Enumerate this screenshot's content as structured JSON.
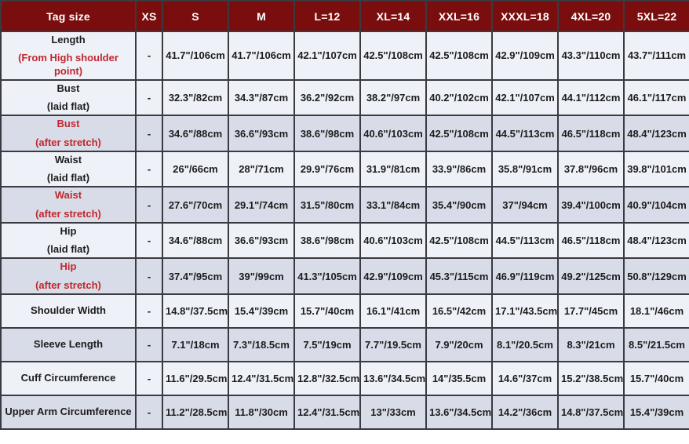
{
  "colors": {
    "header_bg": "#7a0d0d",
    "header_text": "#ffffff",
    "row_light_bg": "#eef1f8",
    "row_dark_bg": "#d8dce8",
    "text_black": "#1c1c1c",
    "text_red": "#c1272d",
    "border": "#3a3a40"
  },
  "chart_data": {
    "type": "table",
    "title": "Tag size chart",
    "header": [
      "Tag size",
      "XS",
      "S",
      "M",
      "L=12",
      "XL=14",
      "XXL=16",
      "XXXL=18",
      "4XL=20",
      "5XL=22"
    ],
    "rows": [
      {
        "label_lines": [
          "Length",
          "(From High shoulder point)"
        ],
        "label_line_colors": [
          "black",
          "red"
        ],
        "value_color": "black",
        "bg": "light",
        "tall": true,
        "values": [
          "-",
          "41.7\"/106cm",
          "41.7\"/106cm",
          "42.1\"/107cm",
          "42.5\"/108cm",
          "42.5\"/108cm",
          "42.9\"/109cm",
          "43.3\"/110cm",
          "43.7\"/111cm"
        ]
      },
      {
        "label_lines": [
          "Bust",
          "(laid flat)"
        ],
        "label_line_colors": [
          "black",
          "black"
        ],
        "value_color": "black",
        "bg": "light",
        "values": [
          "-",
          "32.3\"/82cm",
          "34.3\"/87cm",
          "36.2\"/92cm",
          "38.2\"/97cm",
          "40.2\"/102cm",
          "42.1\"/107cm",
          "44.1\"/112cm",
          "46.1\"/117cm"
        ]
      },
      {
        "label_lines": [
          "Bust",
          "(after stretch)"
        ],
        "label_line_colors": [
          "red",
          "red"
        ],
        "value_color": "red",
        "bg": "dark",
        "values": [
          "-",
          "34.6\"/88cm",
          "36.6\"/93cm",
          "38.6\"/98cm",
          "40.6\"/103cm",
          "42.5\"/108cm",
          "44.5\"/113cm",
          "46.5\"/118cm",
          "48.4\"/123cm"
        ]
      },
      {
        "label_lines": [
          "Waist",
          "(laid flat)"
        ],
        "label_line_colors": [
          "black",
          "black"
        ],
        "value_color": "black",
        "bg": "light",
        "values": [
          "-",
          "26\"/66cm",
          "28\"/71cm",
          "29.9\"/76cm",
          "31.9\"/81cm",
          "33.9\"/86cm",
          "35.8\"/91cm",
          "37.8\"/96cm",
          "39.8\"/101cm"
        ]
      },
      {
        "label_lines": [
          "Waist",
          "(after stretch)"
        ],
        "label_line_colors": [
          "red",
          "red"
        ],
        "value_color": "red",
        "bg": "dark",
        "values": [
          "-",
          "27.6\"/70cm",
          "29.1\"/74cm",
          "31.5\"/80cm",
          "33.1\"/84cm",
          "35.4\"/90cm",
          "37\"/94cm",
          "39.4\"/100cm",
          "40.9\"/104cm"
        ]
      },
      {
        "label_lines": [
          "Hip",
          "(laid flat)"
        ],
        "label_line_colors": [
          "black",
          "black"
        ],
        "value_color": "black",
        "bg": "light",
        "values": [
          "-",
          "34.6\"/88cm",
          "36.6\"/93cm",
          "38.6\"/98cm",
          "40.6\"/103cm",
          "42.5\"/108cm",
          "44.5\"/113cm",
          "46.5\"/118cm",
          "48.4\"/123cm"
        ]
      },
      {
        "label_lines": [
          "Hip",
          "(after stretch)"
        ],
        "label_line_colors": [
          "red",
          "red"
        ],
        "value_color": "red",
        "bg": "dark",
        "values": [
          "-",
          "37.4\"/95cm",
          "39\"/99cm",
          "41.3\"/105cm",
          "42.9\"/109cm",
          "45.3\"/115cm",
          "46.9\"/119cm",
          "49.2\"/125cm",
          "50.8\"/129cm"
        ]
      },
      {
        "label_lines": [
          "Shoulder Width"
        ],
        "label_line_colors": [
          "black"
        ],
        "value_color": "black",
        "bg": "light",
        "values": [
          "-",
          "14.8\"/37.5cm",
          "15.4\"/39cm",
          "15.7\"/40cm",
          "16.1\"/41cm",
          "16.5\"/42cm",
          "17.1\"/43.5cm",
          "17.7\"/45cm",
          "18.1\"/46cm"
        ]
      },
      {
        "label_lines": [
          "Sleeve Length"
        ],
        "label_line_colors": [
          "black"
        ],
        "value_color": "black",
        "bg": "dark",
        "values": [
          "-",
          "7.1\"/18cm",
          "7.3\"/18.5cm",
          "7.5\"/19cm",
          "7.7\"/19.5cm",
          "7.9\"/20cm",
          "8.1\"/20.5cm",
          "8.3\"/21cm",
          "8.5\"/21.5cm"
        ]
      },
      {
        "label_lines": [
          "Cuff Circumference"
        ],
        "label_line_colors": [
          "black"
        ],
        "value_color": "black",
        "bg": "light",
        "values": [
          "-",
          "11.6\"/29.5cm",
          "12.4\"/31.5cm",
          "12.8\"/32.5cm",
          "13.6\"/34.5cm",
          "14\"/35.5cm",
          "14.6\"/37cm",
          "15.2\"/38.5cm",
          "15.7\"/40cm"
        ]
      },
      {
        "label_lines": [
          "Upper Arm Circumference"
        ],
        "label_line_colors": [
          "black"
        ],
        "value_color": "black",
        "bg": "dark",
        "values": [
          "-",
          "11.2\"/28.5cm",
          "11.8\"/30cm",
          "12.4\"/31.5cm",
          "13\"/33cm",
          "13.6\"/34.5cm",
          "14.2\"/36cm",
          "14.8\"/37.5cm",
          "15.4\"/39cm"
        ]
      }
    ]
  }
}
